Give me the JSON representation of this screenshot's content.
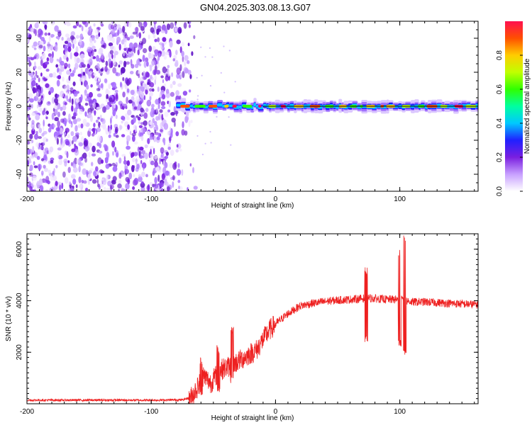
{
  "title": "GN04.2025.303.08.13.G07",
  "colors": {
    "snr_line": "#ee2020",
    "speckle": "#7a1fe0",
    "axis": "#000000",
    "colormap": [
      "#ffffff",
      "#c8a0ff",
      "#7a1fe0",
      "#2020ff",
      "#00c8ff",
      "#00ffa0",
      "#30ff00",
      "#c0ff00",
      "#ffcc00",
      "#ff5000",
      "#ff1050"
    ]
  },
  "chart_data": [
    {
      "id": "spectrogram",
      "type": "heatmap",
      "xlabel": "Height of straight line (km)",
      "ylabel": "Frequency (Hz)",
      "xlim": [
        -200,
        163
      ],
      "ylim": [
        -50,
        50
      ],
      "xticks": [
        "-200",
        "-100",
        "0",
        "100"
      ],
      "xtick_values": [
        -200,
        -100,
        0,
        100
      ],
      "yticks": [
        "-40",
        "-20",
        "0",
        "20",
        "40"
      ],
      "ytick_values": [
        -40,
        -20,
        0,
        20,
        40
      ],
      "noise_region_x": [
        -200,
        -72
      ],
      "signal_band_x": [
        -80,
        163
      ],
      "signal_center_hz": 0,
      "colorbar": {
        "label": "Normalized spectral amplitude",
        "range": [
          0,
          1
        ],
        "ticks": [
          "0.0",
          "0.2",
          "0.4",
          "0.6",
          "0.8"
        ],
        "tick_values": [
          0.0,
          0.2,
          0.4,
          0.6,
          0.8
        ]
      }
    },
    {
      "id": "snr",
      "type": "line",
      "xlabel": "Height of straight line (km)",
      "ylabel": "SNR (10 * v/v)",
      "xlim": [
        -200,
        163
      ],
      "ylim": [
        0,
        6600
      ],
      "xticks": [
        "-200",
        "-100",
        "0",
        "100"
      ],
      "xtick_values": [
        -200,
        -100,
        0,
        100
      ],
      "yticks": [
        "2000",
        "4000",
        "6000"
      ],
      "ytick_values": [
        2000,
        4000,
        6000
      ],
      "series": [
        {
          "name": "SNR",
          "x": [
            -200,
            -150,
            -100,
            -75,
            -68,
            -62,
            -58,
            -52,
            -45,
            -35,
            -25,
            -15,
            -10,
            -5,
            0,
            10,
            20,
            30,
            45,
            60,
            75,
            90,
            100,
            105,
            110,
            120,
            140,
            163
          ],
          "values": [
            140,
            140,
            140,
            150,
            250,
            700,
            1100,
            800,
            1300,
            1500,
            1800,
            2100,
            2500,
            2850,
            3100,
            3500,
            3800,
            3900,
            4000,
            4050,
            4100,
            4050,
            4050,
            4000,
            3950,
            3950,
            3900,
            3850
          ]
        }
      ],
      "spikes": [
        {
          "x": -60,
          "low": 300,
          "high": 1800
        },
        {
          "x": -46,
          "low": 400,
          "high": 2300
        },
        {
          "x": -35,
          "low": 800,
          "high": 3000
        },
        {
          "x": 73,
          "low": 2400,
          "high": 5300
        },
        {
          "x": 100,
          "low": 2200,
          "high": 6000
        },
        {
          "x": 104,
          "low": 1900,
          "high": 6600
        }
      ]
    }
  ]
}
